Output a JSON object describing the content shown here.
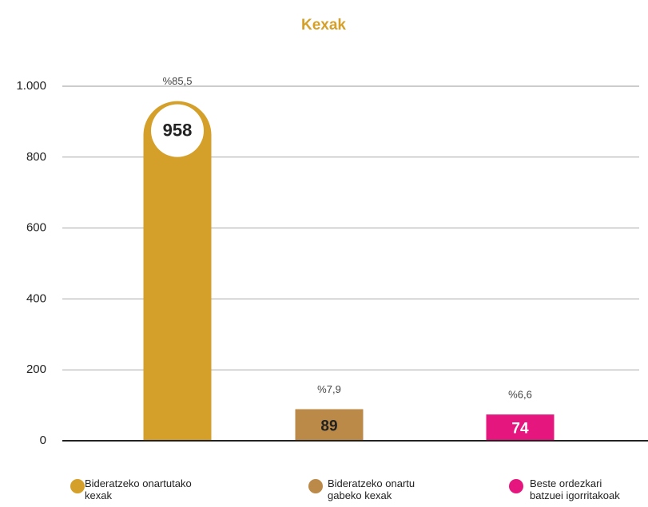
{
  "chart_data": {
    "type": "bar",
    "title": "Kexak",
    "categories": [
      "Bideratzeko onartutako kexak",
      "Bideratzeko onartu gabeko kexak",
      "Beste ordezkari batzuei igorritakoak"
    ],
    "values": [
      958,
      89,
      74
    ],
    "percent_labels": [
      "%85,5",
      "%7,9",
      "%6,6"
    ],
    "colors": [
      "#d4a02a",
      "#bb8a48",
      "#e5177e"
    ],
    "ylim": [
      0,
      1000
    ],
    "yticks": [
      0,
      200,
      400,
      600,
      800,
      {
        "value": 1000,
        "label": "1.000"
      }
    ],
    "grid": true
  }
}
